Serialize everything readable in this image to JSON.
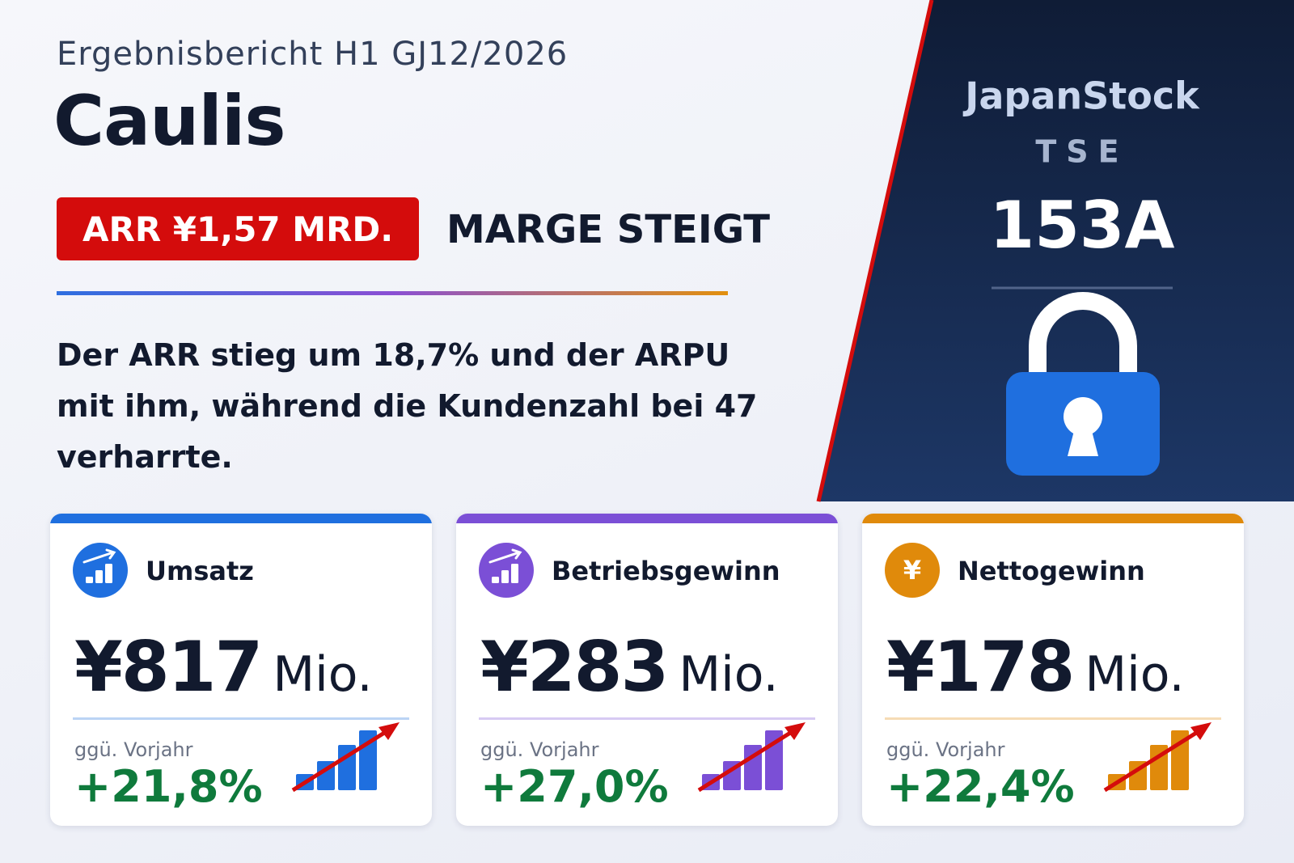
{
  "header": {
    "subtitle": "Ergebnisbericht H1 GJ12/2026",
    "title": "Caulis",
    "badge": "ARR ¥1,57 MRD.",
    "tagline": "MARGE STEIGT"
  },
  "summary": "Der ARR stieg um 18,7% und der ARPU mit ihm, während die Kundenzahl bei 47 verharrte.",
  "panel": {
    "brand": "JapanStock",
    "exchange": "TSE",
    "code": "153A"
  },
  "cards": [
    {
      "label": "Umsatz",
      "value": "¥817",
      "unit": "Mio.",
      "compare_label": "ggü. Vorjahr",
      "change": "+21,8%",
      "color": "#1f6fdf"
    },
    {
      "label": "Betriebsgewinn",
      "value": "¥283",
      "unit": "Mio.",
      "compare_label": "ggü. Vorjahr",
      "change": "+27,0%",
      "color": "#7b4fd6"
    },
    {
      "label": "Nettogewinn",
      "value": "¥178",
      "unit": "Mio.",
      "compare_label": "ggü. Vorjahr",
      "change": "+22,4%",
      "color": "#e08a0b",
      "icon_symbol": "¥"
    }
  ]
}
